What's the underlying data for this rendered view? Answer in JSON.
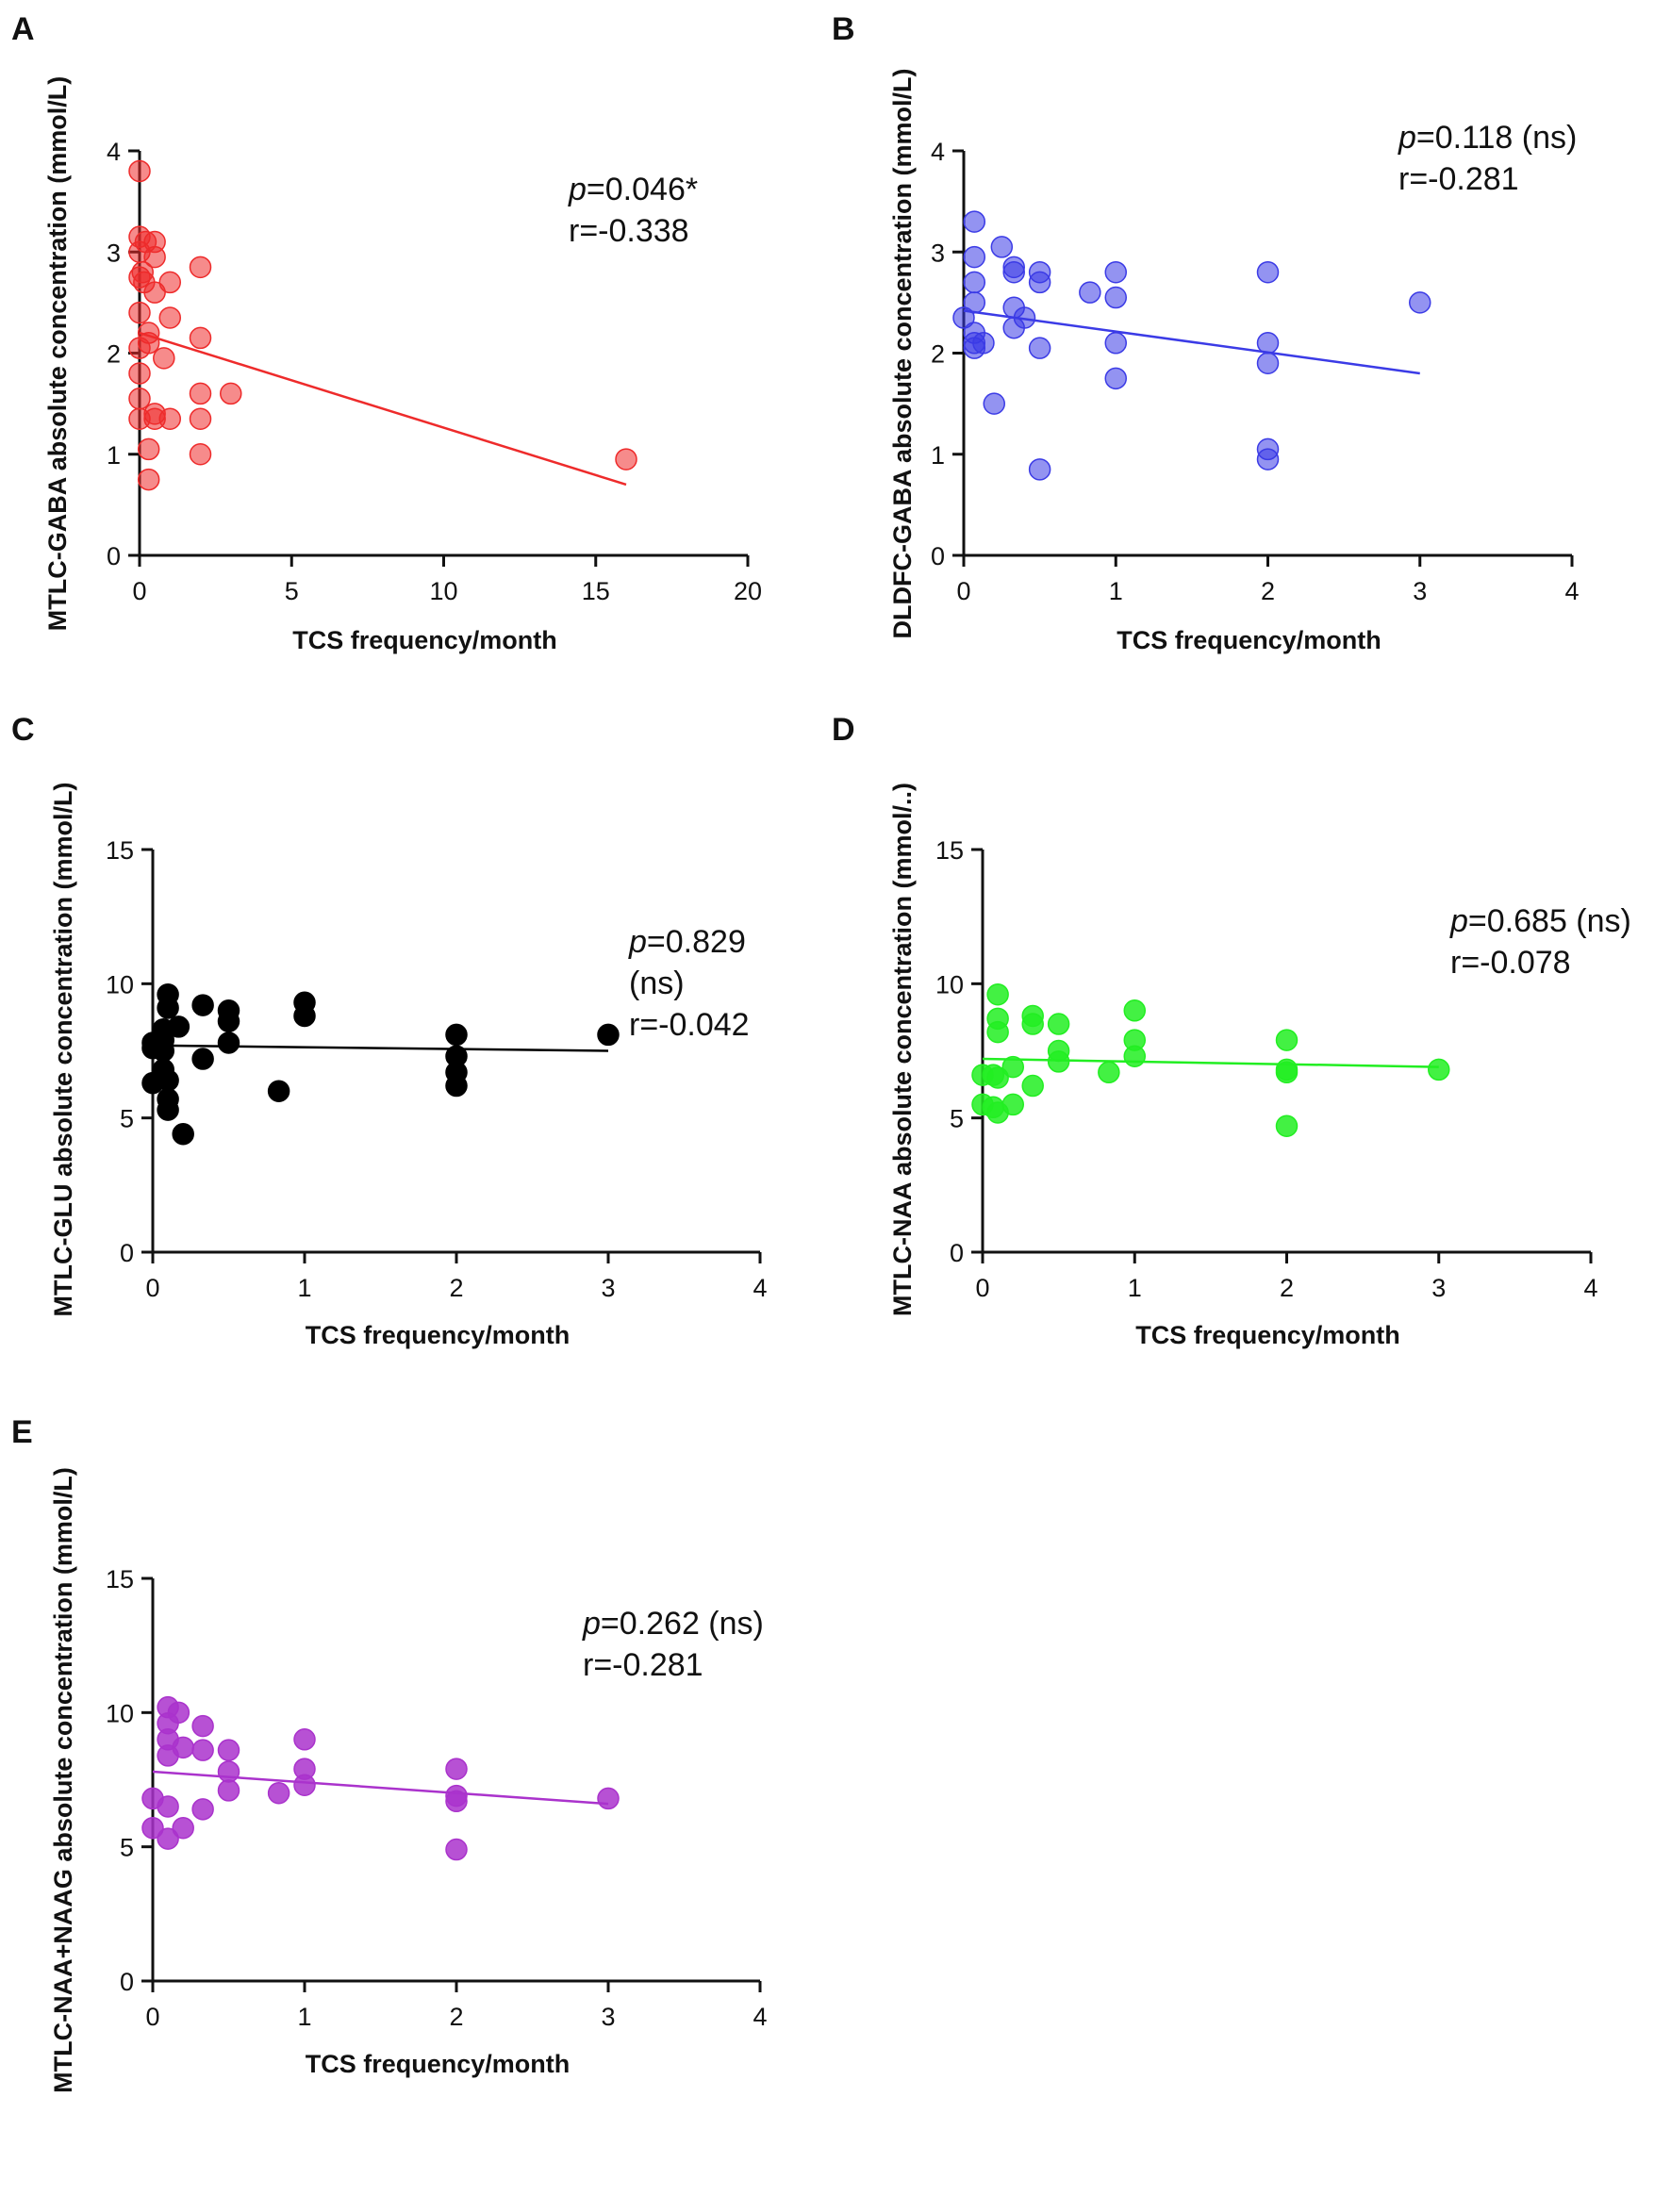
{
  "chart_data": [
    {
      "panel": "A",
      "type": "scatter",
      "xlabel": "TCS frequency/month",
      "ylabel": "MTLC-GABA absolute concentration (mmol/L)",
      "xlim": [
        0,
        20
      ],
      "ylim": [
        0,
        4
      ],
      "xticks": [
        0,
        5,
        10,
        15,
        20
      ],
      "yticks": [
        0,
        1,
        2,
        3,
        4
      ],
      "stats": [
        "p=0.046*",
        "r=-0.338"
      ],
      "color": "#ee2b2b",
      "fill_opacity": 0.55,
      "points": [
        [
          0,
          3.8
        ],
        [
          0,
          3.15
        ],
        [
          0,
          3.0
        ],
        [
          0,
          2.75
        ],
        [
          0,
          2.4
        ],
        [
          0,
          2.05
        ],
        [
          0,
          1.8
        ],
        [
          0,
          1.55
        ],
        [
          0,
          1.35
        ],
        [
          0.1,
          2.8
        ],
        [
          0.15,
          2.7
        ],
        [
          0.2,
          3.1
        ],
        [
          0.3,
          2.2
        ],
        [
          0.3,
          2.1
        ],
        [
          0.3,
          1.05
        ],
        [
          0.3,
          0.75
        ],
        [
          0.5,
          3.1
        ],
        [
          0.5,
          2.95
        ],
        [
          0.5,
          2.6
        ],
        [
          0.5,
          1.4
        ],
        [
          0.5,
          1.35
        ],
        [
          0.8,
          1.95
        ],
        [
          1,
          2.7
        ],
        [
          1,
          2.35
        ],
        [
          1,
          1.35
        ],
        [
          2,
          2.85
        ],
        [
          2,
          2.15
        ],
        [
          2,
          1.6
        ],
        [
          2,
          1.35
        ],
        [
          2,
          1.0
        ],
        [
          3,
          1.6
        ],
        [
          16,
          0.95
        ]
      ],
      "fit": {
        "x": [
          0,
          16
        ],
        "y": [
          2.2,
          0.7
        ]
      }
    },
    {
      "panel": "B",
      "type": "scatter",
      "xlabel": "TCS frequency/month",
      "ylabel": "DLDFC-GABA absolute concentration (mmol/L)",
      "xlim": [
        0,
        4
      ],
      "ylim": [
        0,
        4
      ],
      "xticks": [
        0,
        1,
        2,
        3,
        4
      ],
      "yticks": [
        0,
        1,
        2,
        3,
        4
      ],
      "stats": [
        "p=0.118 (ns)",
        "r=-0.281"
      ],
      "color": "#3b3be6",
      "fill_opacity": 0.55,
      "points": [
        [
          0,
          2.35
        ],
        [
          0.07,
          3.3
        ],
        [
          0.07,
          2.95
        ],
        [
          0.07,
          2.7
        ],
        [
          0.07,
          2.5
        ],
        [
          0.07,
          2.2
        ],
        [
          0.07,
          2.1
        ],
        [
          0.07,
          2.05
        ],
        [
          0.13,
          2.1
        ],
        [
          0.2,
          1.5
        ],
        [
          0.25,
          3.05
        ],
        [
          0.33,
          2.85
        ],
        [
          0.33,
          2.8
        ],
        [
          0.33,
          2.45
        ],
        [
          0.33,
          2.25
        ],
        [
          0.4,
          2.35
        ],
        [
          0.5,
          2.8
        ],
        [
          0.5,
          2.7
        ],
        [
          0.5,
          2.05
        ],
        [
          0.5,
          0.85
        ],
        [
          0.83,
          2.6
        ],
        [
          1,
          2.8
        ],
        [
          1,
          2.55
        ],
        [
          1,
          2.1
        ],
        [
          1,
          1.75
        ],
        [
          2,
          2.8
        ],
        [
          2,
          2.1
        ],
        [
          2,
          1.9
        ],
        [
          2,
          1.05
        ],
        [
          2,
          0.95
        ],
        [
          3,
          2.5
        ]
      ],
      "fit": {
        "x": [
          0,
          3
        ],
        "y": [
          2.42,
          1.8
        ]
      }
    },
    {
      "panel": "C",
      "type": "scatter",
      "xlabel": "TCS frequency/month",
      "ylabel": "MTLC-GLU absolute concentration (mmol/L)",
      "xlim": [
        0,
        4
      ],
      "ylim": [
        0,
        15
      ],
      "xticks": [
        0,
        1,
        2,
        3,
        4
      ],
      "yticks": [
        0,
        5,
        10,
        15
      ],
      "stats": [
        "p=0.829",
        "(ns)",
        "r=-0.042"
      ],
      "color": "#000000",
      "fill_opacity": 1.0,
      "points": [
        [
          0,
          7.8
        ],
        [
          0,
          7.6
        ],
        [
          0,
          6.3
        ],
        [
          0.07,
          8.3
        ],
        [
          0.07,
          7.9
        ],
        [
          0.07,
          7.5
        ],
        [
          0.07,
          6.8
        ],
        [
          0.1,
          9.6
        ],
        [
          0.1,
          9.1
        ],
        [
          0.1,
          6.4
        ],
        [
          0.1,
          5.7
        ],
        [
          0.1,
          5.3
        ],
        [
          0.17,
          8.4
        ],
        [
          0.2,
          4.4
        ],
        [
          0.33,
          9.2
        ],
        [
          0.33,
          7.2
        ],
        [
          0.5,
          9.0
        ],
        [
          0.5,
          8.6
        ],
        [
          0.5,
          7.8
        ],
        [
          0.83,
          6.0
        ],
        [
          1,
          9.3
        ],
        [
          1,
          8.8
        ],
        [
          2,
          8.1
        ],
        [
          2,
          7.3
        ],
        [
          2,
          6.7
        ],
        [
          2,
          6.2
        ],
        [
          3,
          8.1
        ]
      ],
      "fit": {
        "x": [
          0,
          3
        ],
        "y": [
          7.7,
          7.5
        ]
      }
    },
    {
      "panel": "D",
      "type": "scatter",
      "xlabel": "TCS frequency/month",
      "ylabel": "MTLC-NAA absolute concentration (mmol/L)",
      "ylabel_suffix": "(mmol/..)",
      "xlim": [
        0,
        4
      ],
      "ylim": [
        0,
        15
      ],
      "xticks": [
        0,
        1,
        2,
        3,
        4
      ],
      "yticks": [
        0,
        5,
        10,
        15
      ],
      "stats": [
        "p=0.685 (ns)",
        "r=-0.078"
      ],
      "color": "#22ee22",
      "fill_opacity": 0.85,
      "points": [
        [
          0,
          6.6
        ],
        [
          0,
          5.5
        ],
        [
          0.07,
          6.6
        ],
        [
          0.07,
          5.4
        ],
        [
          0.1,
          9.6
        ],
        [
          0.1,
          8.7
        ],
        [
          0.1,
          8.2
        ],
        [
          0.1,
          6.5
        ],
        [
          0.1,
          5.2
        ],
        [
          0.2,
          6.9
        ],
        [
          0.2,
          5.5
        ],
        [
          0.33,
          8.8
        ],
        [
          0.33,
          8.5
        ],
        [
          0.33,
          6.2
        ],
        [
          0.5,
          8.5
        ],
        [
          0.5,
          7.5
        ],
        [
          0.5,
          7.1
        ],
        [
          0.83,
          6.7
        ],
        [
          1,
          9.0
        ],
        [
          1,
          7.9
        ],
        [
          1,
          7.3
        ],
        [
          2,
          7.9
        ],
        [
          2,
          6.8
        ],
        [
          2,
          6.7
        ],
        [
          2,
          4.7
        ],
        [
          3,
          6.8
        ]
      ],
      "fit": {
        "x": [
          0,
          3
        ],
        "y": [
          7.2,
          6.9
        ]
      }
    },
    {
      "panel": "E",
      "type": "scatter",
      "xlabel": "TCS frequency/month",
      "ylabel": "MTLC-NAA+NAAG absolute concentration (mmol/L)",
      "xlim": [
        0,
        4
      ],
      "ylim": [
        0,
        15
      ],
      "xticks": [
        0,
        1,
        2,
        3,
        4
      ],
      "yticks": [
        0,
        5,
        10,
        15
      ],
      "stats": [
        "p=0.262 (ns)",
        "r=-0.281"
      ],
      "color": "#aa33cc",
      "fill_opacity": 0.85,
      "points": [
        [
          0,
          6.8
        ],
        [
          0,
          5.7
        ],
        [
          0.1,
          10.2
        ],
        [
          0.1,
          9.6
        ],
        [
          0.1,
          9.0
        ],
        [
          0.1,
          8.4
        ],
        [
          0.1,
          6.5
        ],
        [
          0.1,
          5.3
        ],
        [
          0.17,
          10.0
        ],
        [
          0.2,
          8.7
        ],
        [
          0.2,
          5.7
        ],
        [
          0.33,
          9.5
        ],
        [
          0.33,
          8.6
        ],
        [
          0.33,
          6.4
        ],
        [
          0.5,
          8.6
        ],
        [
          0.5,
          7.8
        ],
        [
          0.5,
          7.1
        ],
        [
          0.83,
          7.0
        ],
        [
          1,
          9.0
        ],
        [
          1,
          7.9
        ],
        [
          1,
          7.3
        ],
        [
          2,
          7.9
        ],
        [
          2,
          6.9
        ],
        [
          2,
          6.7
        ],
        [
          2,
          4.9
        ],
        [
          3,
          6.8
        ]
      ],
      "fit": {
        "x": [
          0,
          3
        ],
        "y": [
          7.8,
          6.6
        ]
      }
    }
  ]
}
